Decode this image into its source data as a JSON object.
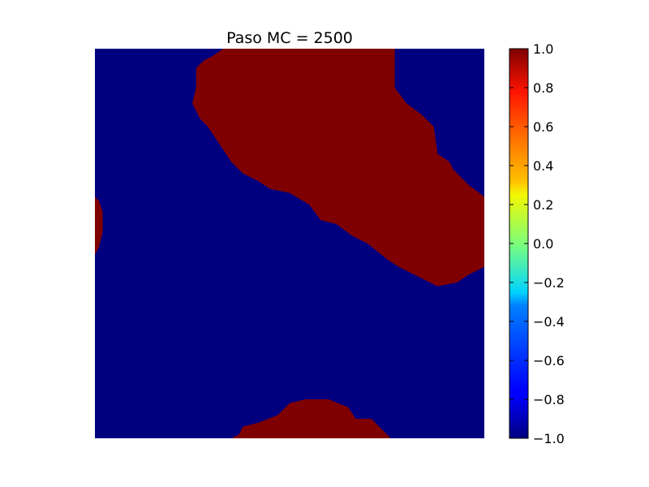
{
  "chart_data": {
    "type": "heatmap",
    "title": "Paso MC = 2500",
    "xlabel": "",
    "ylabel": "",
    "axes_visible": false,
    "grid": false,
    "colormap": "jet",
    "value_range": [
      -1.0,
      1.0
    ],
    "grid_size": [
      100,
      100
    ],
    "values_present": [
      -1,
      1
    ],
    "value_colors": {
      "-1": "#00007f",
      "1": "#7f0000"
    },
    "colorbar": {
      "ticks": [
        1.0,
        0.8,
        0.6,
        0.4,
        0.2,
        0.0,
        -0.2,
        -0.4,
        -0.6,
        -0.8,
        -1.0
      ],
      "tick_labels": [
        "1.0",
        "0.8",
        "0.6",
        "0.4",
        "0.2",
        "0.0",
        "−0.2",
        "−0.4",
        "−0.6",
        "−0.8",
        "−1.0"
      ],
      "placement": "right"
    },
    "domains_value_1": [
      {
        "name": "upper domain",
        "boundary": [
          [
            33,
            0
          ],
          [
            77,
            0
          ],
          [
            77,
            10
          ],
          [
            80,
            14
          ],
          [
            84,
            17
          ],
          [
            87,
            20
          ],
          [
            88,
            27
          ],
          [
            91,
            29
          ],
          [
            92,
            31
          ],
          [
            96,
            35
          ],
          [
            100,
            38
          ],
          [
            100,
            56
          ],
          [
            96,
            58
          ],
          [
            93,
            60
          ],
          [
            88,
            61
          ],
          [
            82,
            58
          ],
          [
            78,
            56
          ],
          [
            75,
            54
          ],
          [
            70,
            50
          ],
          [
            66,
            48
          ],
          [
            62,
            45
          ],
          [
            58,
            44
          ],
          [
            55,
            40
          ],
          [
            50,
            37
          ],
          [
            45,
            36
          ],
          [
            42,
            34
          ],
          [
            38,
            32
          ],
          [
            35,
            29
          ],
          [
            33,
            26
          ],
          [
            31,
            23
          ],
          [
            29,
            20
          ],
          [
            27,
            18
          ],
          [
            26,
            16
          ],
          [
            25,
            14
          ],
          [
            26,
            10
          ],
          [
            26,
            5
          ],
          [
            28,
            3
          ],
          [
            30,
            2
          ],
          [
            33,
            0
          ]
        ]
      },
      {
        "name": "left edge domain",
        "boundary": [
          [
            0,
            38
          ],
          [
            1,
            39
          ],
          [
            2,
            42
          ],
          [
            2,
            47
          ],
          [
            1,
            51
          ],
          [
            0,
            53
          ]
        ]
      },
      {
        "name": "bottom domain",
        "boundary": [
          [
            35,
            100
          ],
          [
            37,
            99
          ],
          [
            38,
            97
          ],
          [
            42,
            96
          ],
          [
            47,
            94
          ],
          [
            50,
            91
          ],
          [
            54,
            90
          ],
          [
            60,
            90
          ],
          [
            65,
            92
          ],
          [
            67,
            95
          ],
          [
            71,
            95
          ],
          [
            74,
            98
          ],
          [
            76,
            100
          ]
        ]
      }
    ]
  }
}
